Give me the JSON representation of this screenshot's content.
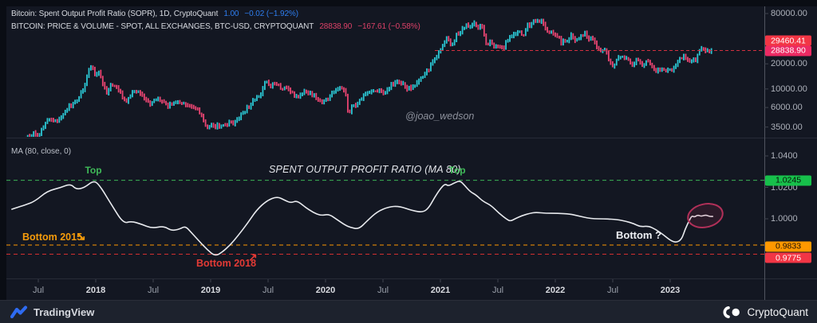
{
  "legend": {
    "row1": {
      "name": "Bitcoin: Spent Output Profit Ratio (SOPR), 1D, CryptoQuant",
      "value": "1.00",
      "change": "−0.02 (−1.92%)",
      "value_color": "#2e7ef0"
    },
    "row2": {
      "name": "BITCOIN: PRICE & VOLUME - SPOT, ALL EXCHANGES, BTC-USD, CRYPTOQUANT",
      "value": "28838.90",
      "change": "−167.61 (−0.58%)",
      "value_color": "#dd4168"
    },
    "ma": "MA (80, close, 0)"
  },
  "watermark": "@joao_wedson",
  "panel2_title": "SPENT OUTPUT PROFIT RATIO (MA 80)",
  "annotations": {
    "top1": "Top",
    "top2": "Top",
    "bottom2015": "Bottom 2015",
    "arrow2015": "↘",
    "bottom2018": "Bottom 2018",
    "arrow2018": "↗",
    "bottom_question": "Bottom ?"
  },
  "price_axis": {
    "ticks": [
      {
        "label": "80000.00",
        "value": 80000
      },
      {
        "label": "20000.00",
        "value": 20000
      },
      {
        "label": "10000.00",
        "value": 10000
      },
      {
        "label": "6000.00",
        "value": 6000
      },
      {
        "label": "3500.00",
        "value": 3500
      }
    ],
    "badges": [
      {
        "label": "29460.41",
        "bg": "#f23645",
        "fg": "#ffffff"
      },
      {
        "label": "28838.90",
        "bg": "#ec2a63",
        "fg": "#ffffff"
      }
    ]
  },
  "sopr_axis": {
    "ticks": [
      {
        "label": "1.0400",
        "value": 1.04
      },
      {
        "label": "1.0200",
        "value": 1.02
      },
      {
        "label": "1.0000",
        "value": 1.0
      }
    ],
    "badges": [
      {
        "label": "1.0245",
        "value": 1.0245,
        "bg": "#17c04b",
        "fg": "#081209"
      },
      {
        "label": "0.9833",
        "value": 0.9833,
        "bg": "#ff9800",
        "fg": "#1a1106"
      },
      {
        "label": "0.9775",
        "value": 0.9775,
        "bg": "#f23645",
        "fg": "#ffffff"
      }
    ]
  },
  "x_axis": [
    {
      "label": "Jul",
      "t": 2017.5,
      "year": false
    },
    {
      "label": "2018",
      "t": 2018.0,
      "year": true
    },
    {
      "label": "Jul",
      "t": 2018.5,
      "year": false
    },
    {
      "label": "2019",
      "t": 2019.0,
      "year": true
    },
    {
      "label": "Jul",
      "t": 2019.5,
      "year": false
    },
    {
      "label": "2020",
      "t": 2020.0,
      "year": true
    },
    {
      "label": "Jul",
      "t": 2020.5,
      "year": false
    },
    {
      "label": "2021",
      "t": 2021.0,
      "year": true
    },
    {
      "label": "Jul",
      "t": 2021.5,
      "year": false
    },
    {
      "label": "2022",
      "t": 2022.0,
      "year": true
    },
    {
      "label": "Jul",
      "t": 2022.5,
      "year": false
    },
    {
      "label": "2023",
      "t": 2023.0,
      "year": true
    }
  ],
  "footer": {
    "left_brand": "TradingView",
    "right_brand": "CryptoQuant"
  },
  "colors": {
    "background": "#131722",
    "frame": "#0a0d14",
    "candle_up": "#2bc7d4",
    "candle_down": "#ea4572",
    "sopr_line": "#e8eaee",
    "price_line_red": "#d33040",
    "level_green": "#3cb454",
    "level_orange": "#ff9800",
    "level_red": "#d32f2f",
    "ellipse": "#b23059",
    "divider": "#272b37",
    "axis_line": "#50545f",
    "tick": "#3f434d"
  },
  "chart_data": [
    {
      "type": "candlestick",
      "name": "BITCOIN: PRICE & VOLUME - SPOT, ALL EXCHANGES, BTC-USD (log scale)",
      "x_unit": "decimal_year",
      "yscale": "log",
      "ylim": [
        3500,
        80000
      ],
      "last_price": 28838.9,
      "price_line_value": 28838.9,
      "points": [
        [
          2017.27,
          2500
        ],
        [
          2017.35,
          2250
        ],
        [
          2017.45,
          2950
        ],
        [
          2017.5,
          2600
        ],
        [
          2017.58,
          4300
        ],
        [
          2017.67,
          4000
        ],
        [
          2017.75,
          5700
        ],
        [
          2017.83,
          7300
        ],
        [
          2017.89,
          9800
        ],
        [
          2017.94,
          16000
        ],
        [
          2017.96,
          19500
        ],
        [
          2017.99,
          14200
        ],
        [
          2018.02,
          16800
        ],
        [
          2018.06,
          11000
        ],
        [
          2018.1,
          8600
        ],
        [
          2018.14,
          11200
        ],
        [
          2018.19,
          10000
        ],
        [
          2018.23,
          8300
        ],
        [
          2018.27,
          7000
        ],
        [
          2018.31,
          9300
        ],
        [
          2018.36,
          9800
        ],
        [
          2018.42,
          7400
        ],
        [
          2018.48,
          6500
        ],
        [
          2018.53,
          7900
        ],
        [
          2018.58,
          7000
        ],
        [
          2018.63,
          6300
        ],
        [
          2018.69,
          6900
        ],
        [
          2018.75,
          6500
        ],
        [
          2018.81,
          6400
        ],
        [
          2018.86,
          6350
        ],
        [
          2018.9,
          5500
        ],
        [
          2018.93,
          4300
        ],
        [
          2018.96,
          3400
        ],
        [
          2019.0,
          3850
        ],
        [
          2019.04,
          3600
        ],
        [
          2019.12,
          3700
        ],
        [
          2019.21,
          3950
        ],
        [
          2019.29,
          5200
        ],
        [
          2019.37,
          7200
        ],
        [
          2019.44,
          9000
        ],
        [
          2019.48,
          12800
        ],
        [
          2019.52,
          10500
        ],
        [
          2019.56,
          11800
        ],
        [
          2019.62,
          10200
        ],
        [
          2019.68,
          9600
        ],
        [
          2019.73,
          8300
        ],
        [
          2019.79,
          8400
        ],
        [
          2019.82,
          9400
        ],
        [
          2019.87,
          8600
        ],
        [
          2019.94,
          7300
        ],
        [
          2020.0,
          7200
        ],
        [
          2020.06,
          8800
        ],
        [
          2020.12,
          10200
        ],
        [
          2020.17,
          9000
        ],
        [
          2020.2,
          4900
        ],
        [
          2020.23,
          6200
        ],
        [
          2020.29,
          6900
        ],
        [
          2020.35,
          9200
        ],
        [
          2020.44,
          9500
        ],
        [
          2020.52,
          9150
        ],
        [
          2020.58,
          11500
        ],
        [
          2020.65,
          11900
        ],
        [
          2020.71,
          10300
        ],
        [
          2020.77,
          10700
        ],
        [
          2020.81,
          13100
        ],
        [
          2020.87,
          15500
        ],
        [
          2020.92,
          19200
        ],
        [
          2020.96,
          23500
        ],
        [
          2021.0,
          29300
        ],
        [
          2021.03,
          35000
        ],
        [
          2021.06,
          40500
        ],
        [
          2021.1,
          30800
        ],
        [
          2021.14,
          46000
        ],
        [
          2021.18,
          49500
        ],
        [
          2021.21,
          54000
        ],
        [
          2021.23,
          58500
        ],
        [
          2021.27,
          52500
        ],
        [
          2021.29,
          63000
        ],
        [
          2021.33,
          54000
        ],
        [
          2021.36,
          57500
        ],
        [
          2021.39,
          36500
        ],
        [
          2021.44,
          35500
        ],
        [
          2021.48,
          31800
        ],
        [
          2021.52,
          33500
        ],
        [
          2021.55,
          29800
        ],
        [
          2021.58,
          39500
        ],
        [
          2021.62,
          44500
        ],
        [
          2021.66,
          47000
        ],
        [
          2021.69,
          48800
        ],
        [
          2021.72,
          41000
        ],
        [
          2021.75,
          55000
        ],
        [
          2021.79,
          61500
        ],
        [
          2021.83,
          64500
        ],
        [
          2021.87,
          67500
        ],
        [
          2021.9,
          57000
        ],
        [
          2021.94,
          49000
        ],
        [
          2021.98,
          46500
        ],
        [
          2022.02,
          42500
        ],
        [
          2022.06,
          35500
        ],
        [
          2022.1,
          38500
        ],
        [
          2022.14,
          43500
        ],
        [
          2022.17,
          39000
        ],
        [
          2022.21,
          42500
        ],
        [
          2022.25,
          46500
        ],
        [
          2022.29,
          41000
        ],
        [
          2022.33,
          38500
        ],
        [
          2022.37,
          30500
        ],
        [
          2022.41,
          29500
        ],
        [
          2022.44,
          30000
        ],
        [
          2022.46,
          22500
        ],
        [
          2022.49,
          19000
        ],
        [
          2022.52,
          20800
        ],
        [
          2022.56,
          23200
        ],
        [
          2022.6,
          24000
        ],
        [
          2022.64,
          21500
        ],
        [
          2022.67,
          19800
        ],
        [
          2022.71,
          22300
        ],
        [
          2022.75,
          19400
        ],
        [
          2022.79,
          20400
        ],
        [
          2022.83,
          20700
        ],
        [
          2022.86,
          16200
        ],
        [
          2022.9,
          16600
        ],
        [
          2022.94,
          17100
        ],
        [
          2022.98,
          16600
        ],
        [
          2023.02,
          17200
        ],
        [
          2023.06,
          21000
        ],
        [
          2023.08,
          23200
        ],
        [
          2023.12,
          24600
        ],
        [
          2023.16,
          22100
        ],
        [
          2023.19,
          22400
        ],
        [
          2023.22,
          20300
        ],
        [
          2023.25,
          28200
        ],
        [
          2023.28,
          29900
        ],
        [
          2023.31,
          27600
        ],
        [
          2023.33,
          29300
        ],
        [
          2023.35,
          27200
        ],
        [
          2023.37,
          28838.9
        ]
      ]
    },
    {
      "type": "line",
      "name": "Spent Output Profit Ratio (MA 80)",
      "x_unit": "decimal_year",
      "yscale": "linear",
      "ylim": [
        0.9715,
        1.047
      ],
      "levels": [
        {
          "label": "Top",
          "value": 1.0245,
          "color": "#3cb454"
        },
        {
          "label": "Bottom 2015",
          "value": 0.9833,
          "color": "#ff9800"
        },
        {
          "label": "Bottom 2018",
          "value": 0.9775,
          "color": "#d32f2f"
        }
      ],
      "points": [
        [
          2017.27,
          1.0061
        ],
        [
          2017.38,
          1.0086
        ],
        [
          2017.47,
          1.0111
        ],
        [
          2017.58,
          1.0177
        ],
        [
          2017.69,
          1.0197
        ],
        [
          2017.78,
          1.0223
        ],
        [
          2017.83,
          1.0187
        ],
        [
          2017.9,
          1.0197
        ],
        [
          2017.98,
          1.0243
        ],
        [
          2018.03,
          1.0218
        ],
        [
          2018.14,
          1.0086
        ],
        [
          2018.24,
          0.997
        ],
        [
          2018.31,
          0.9985
        ],
        [
          2018.4,
          0.9965
        ],
        [
          2018.49,
          0.9939
        ],
        [
          2018.59,
          0.9954
        ],
        [
          2018.66,
          0.9924
        ],
        [
          2018.73,
          0.9934
        ],
        [
          2018.78,
          0.9954
        ],
        [
          2018.83,
          0.9914
        ],
        [
          2018.9,
          0.9858
        ],
        [
          2018.97,
          0.9803
        ],
        [
          2019.04,
          0.9762
        ],
        [
          2019.1,
          0.9787
        ],
        [
          2019.17,
          0.9833
        ],
        [
          2019.24,
          0.9894
        ],
        [
          2019.32,
          0.997
        ],
        [
          2019.4,
          1.0056
        ],
        [
          2019.49,
          1.0116
        ],
        [
          2019.58,
          1.0142
        ],
        [
          2019.65,
          1.0116
        ],
        [
          2019.7,
          1.0101
        ],
        [
          2019.75,
          1.0116
        ],
        [
          2019.82,
          1.0076
        ],
        [
          2019.89,
          1.0041
        ],
        [
          2019.96,
          1.002
        ],
        [
          2020.03,
          1.003
        ],
        [
          2020.1,
          0.9995
        ],
        [
          2020.17,
          0.996
        ],
        [
          2020.22,
          0.9944
        ],
        [
          2020.29,
          0.9934
        ],
        [
          2020.36,
          0.9985
        ],
        [
          2020.45,
          1.0046
        ],
        [
          2020.55,
          1.0076
        ],
        [
          2020.64,
          1.0081
        ],
        [
          2020.76,
          1.0051
        ],
        [
          2020.85,
          1.0041
        ],
        [
          2020.9,
          1.0071
        ],
        [
          2020.95,
          1.0137
        ],
        [
          2021.0,
          1.0192
        ],
        [
          2021.04,
          1.0223
        ],
        [
          2021.07,
          1.0208
        ],
        [
          2021.12,
          1.0228
        ],
        [
          2021.17,
          1.0243
        ],
        [
          2021.21,
          1.0213
        ],
        [
          2021.26,
          1.0172
        ],
        [
          2021.31,
          1.0152
        ],
        [
          2021.37,
          1.0111
        ],
        [
          2021.44,
          1.0086
        ],
        [
          2021.51,
          1.0035
        ],
        [
          2021.58,
          0.9995
        ],
        [
          2021.61,
          0.9985
        ],
        [
          2021.65,
          1.0
        ],
        [
          2021.71,
          1.002
        ],
        [
          2021.78,
          1.0035
        ],
        [
          2021.83,
          1.0041
        ],
        [
          2021.92,
          1.0035
        ],
        [
          2022.02,
          1.0035
        ],
        [
          2022.13,
          1.003
        ],
        [
          2022.19,
          1.002
        ],
        [
          2022.31,
          1.0
        ],
        [
          2022.43,
          1.0
        ],
        [
          2022.54,
          0.9995
        ],
        [
          2022.61,
          0.9985
        ],
        [
          2022.68,
          0.997
        ],
        [
          2022.74,
          0.9949
        ],
        [
          2022.81,
          0.9954
        ],
        [
          2022.87,
          0.9934
        ],
        [
          2022.94,
          0.9899
        ],
        [
          2023.0,
          0.9863
        ],
        [
          2023.05,
          0.9848
        ],
        [
          2023.1,
          0.9868
        ],
        [
          2023.13,
          0.9934
        ],
        [
          2023.17,
          0.9995
        ],
        [
          2023.19,
          1.002
        ],
        [
          2023.21,
          1.001
        ],
        [
          2023.24,
          1.0025
        ],
        [
          2023.27,
          1.0015
        ],
        [
          2023.31,
          1.0025
        ],
        [
          2023.34,
          1.0015
        ],
        [
          2023.37,
          1.0015
        ]
      ]
    }
  ]
}
